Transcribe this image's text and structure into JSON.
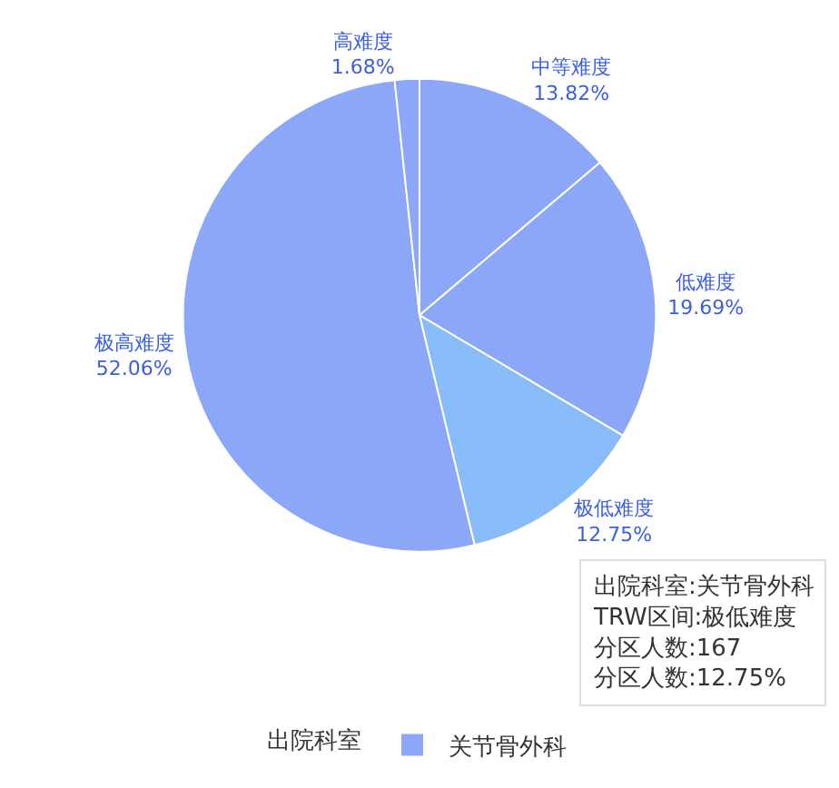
{
  "chart_data": {
    "type": "pie",
    "categories": [
      "中等难度",
      "低难度",
      "极低难度",
      "极高难度",
      "高难度"
    ],
    "series": [
      {
        "name": "关节骨外科",
        "color": "#8ca6f8",
        "values": [
          13.82,
          19.69,
          12.75,
          52.06,
          1.68
        ],
        "colors": [
          "#8ca6f8",
          "#8ca6f8",
          "#88bcf8",
          "#8ca6f8",
          "#8ca6f8"
        ],
        "value_labels": [
          "13.82%",
          "19.69%",
          "12.75%",
          "52.06%",
          "1.68%"
        ]
      }
    ],
    "legend": "bottom",
    "legend_title": "出院科室",
    "annotations": [
      "出院科室:关节骨外科",
      "TRW区间:极低难度",
      "分区人数:167",
      "分区人数:12.75%"
    ]
  }
}
